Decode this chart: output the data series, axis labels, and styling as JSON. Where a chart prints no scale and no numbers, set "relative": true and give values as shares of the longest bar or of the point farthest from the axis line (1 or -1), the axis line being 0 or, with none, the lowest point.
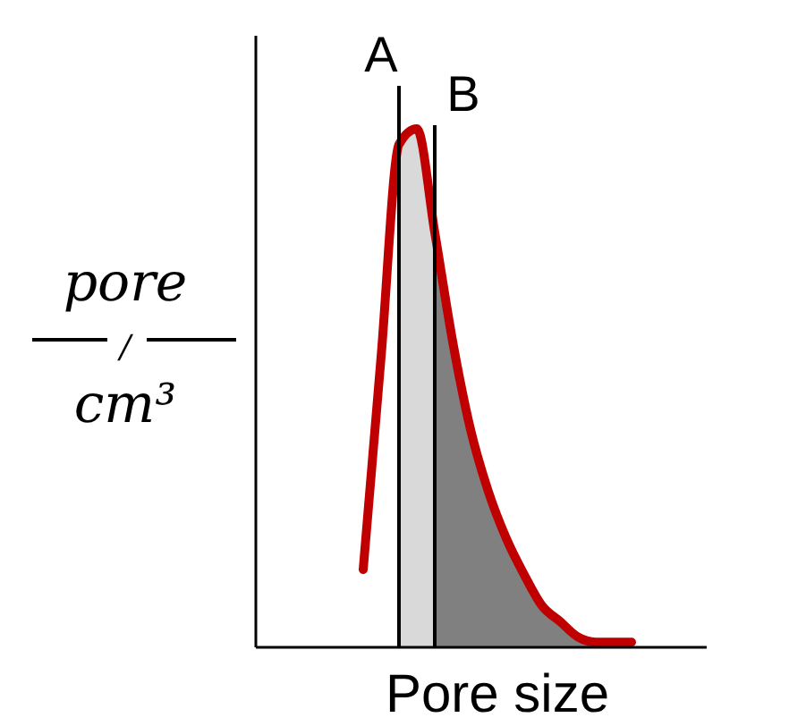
{
  "chart_data": {
    "type": "line",
    "relative": true,
    "xlabel": "Pore size",
    "ylabel": "pore/cm³",
    "annotations": [
      "A",
      "B"
    ],
    "categories": [
      null,
      null,
      null,
      null,
      null,
      null,
      null,
      null,
      null,
      null,
      null,
      null,
      null,
      null,
      null,
      null,
      null,
      null,
      null,
      null,
      null,
      null,
      null,
      null,
      null,
      null
    ],
    "series": [
      {
        "type": "area",
        "color": "#d9d9d9",
        "values": [
          null,
          null,
          null,
          null,
          null,
          null,
          null,
          null,
          0.97,
          1,
          0.8,
          null,
          null,
          null,
          null,
          null,
          null,
          null,
          null,
          null,
          null,
          null,
          null,
          null,
          null,
          null
        ]
      },
      {
        "type": "area",
        "color": "#808080",
        "values": [
          null,
          null,
          null,
          null,
          null,
          null,
          null,
          null,
          null,
          null,
          0.8,
          0.59,
          0.42,
          0.3,
          0.21,
          0.14,
          0.08,
          0.05,
          0.02,
          0.01,
          0.01,
          0.01,
          null,
          null,
          null,
          null
        ]
      },
      {
        "color": "#c00000",
        "values": [
          null,
          null,
          null,
          null,
          null,
          null,
          0.15,
          0.56,
          0.97,
          1,
          0.8,
          0.59,
          0.42,
          0.3,
          0.21,
          0.14,
          0.08,
          0.05,
          0.02,
          0.01,
          0.01,
          0.01,
          null,
          null,
          null,
          null
        ]
      }
    ]
  }
}
